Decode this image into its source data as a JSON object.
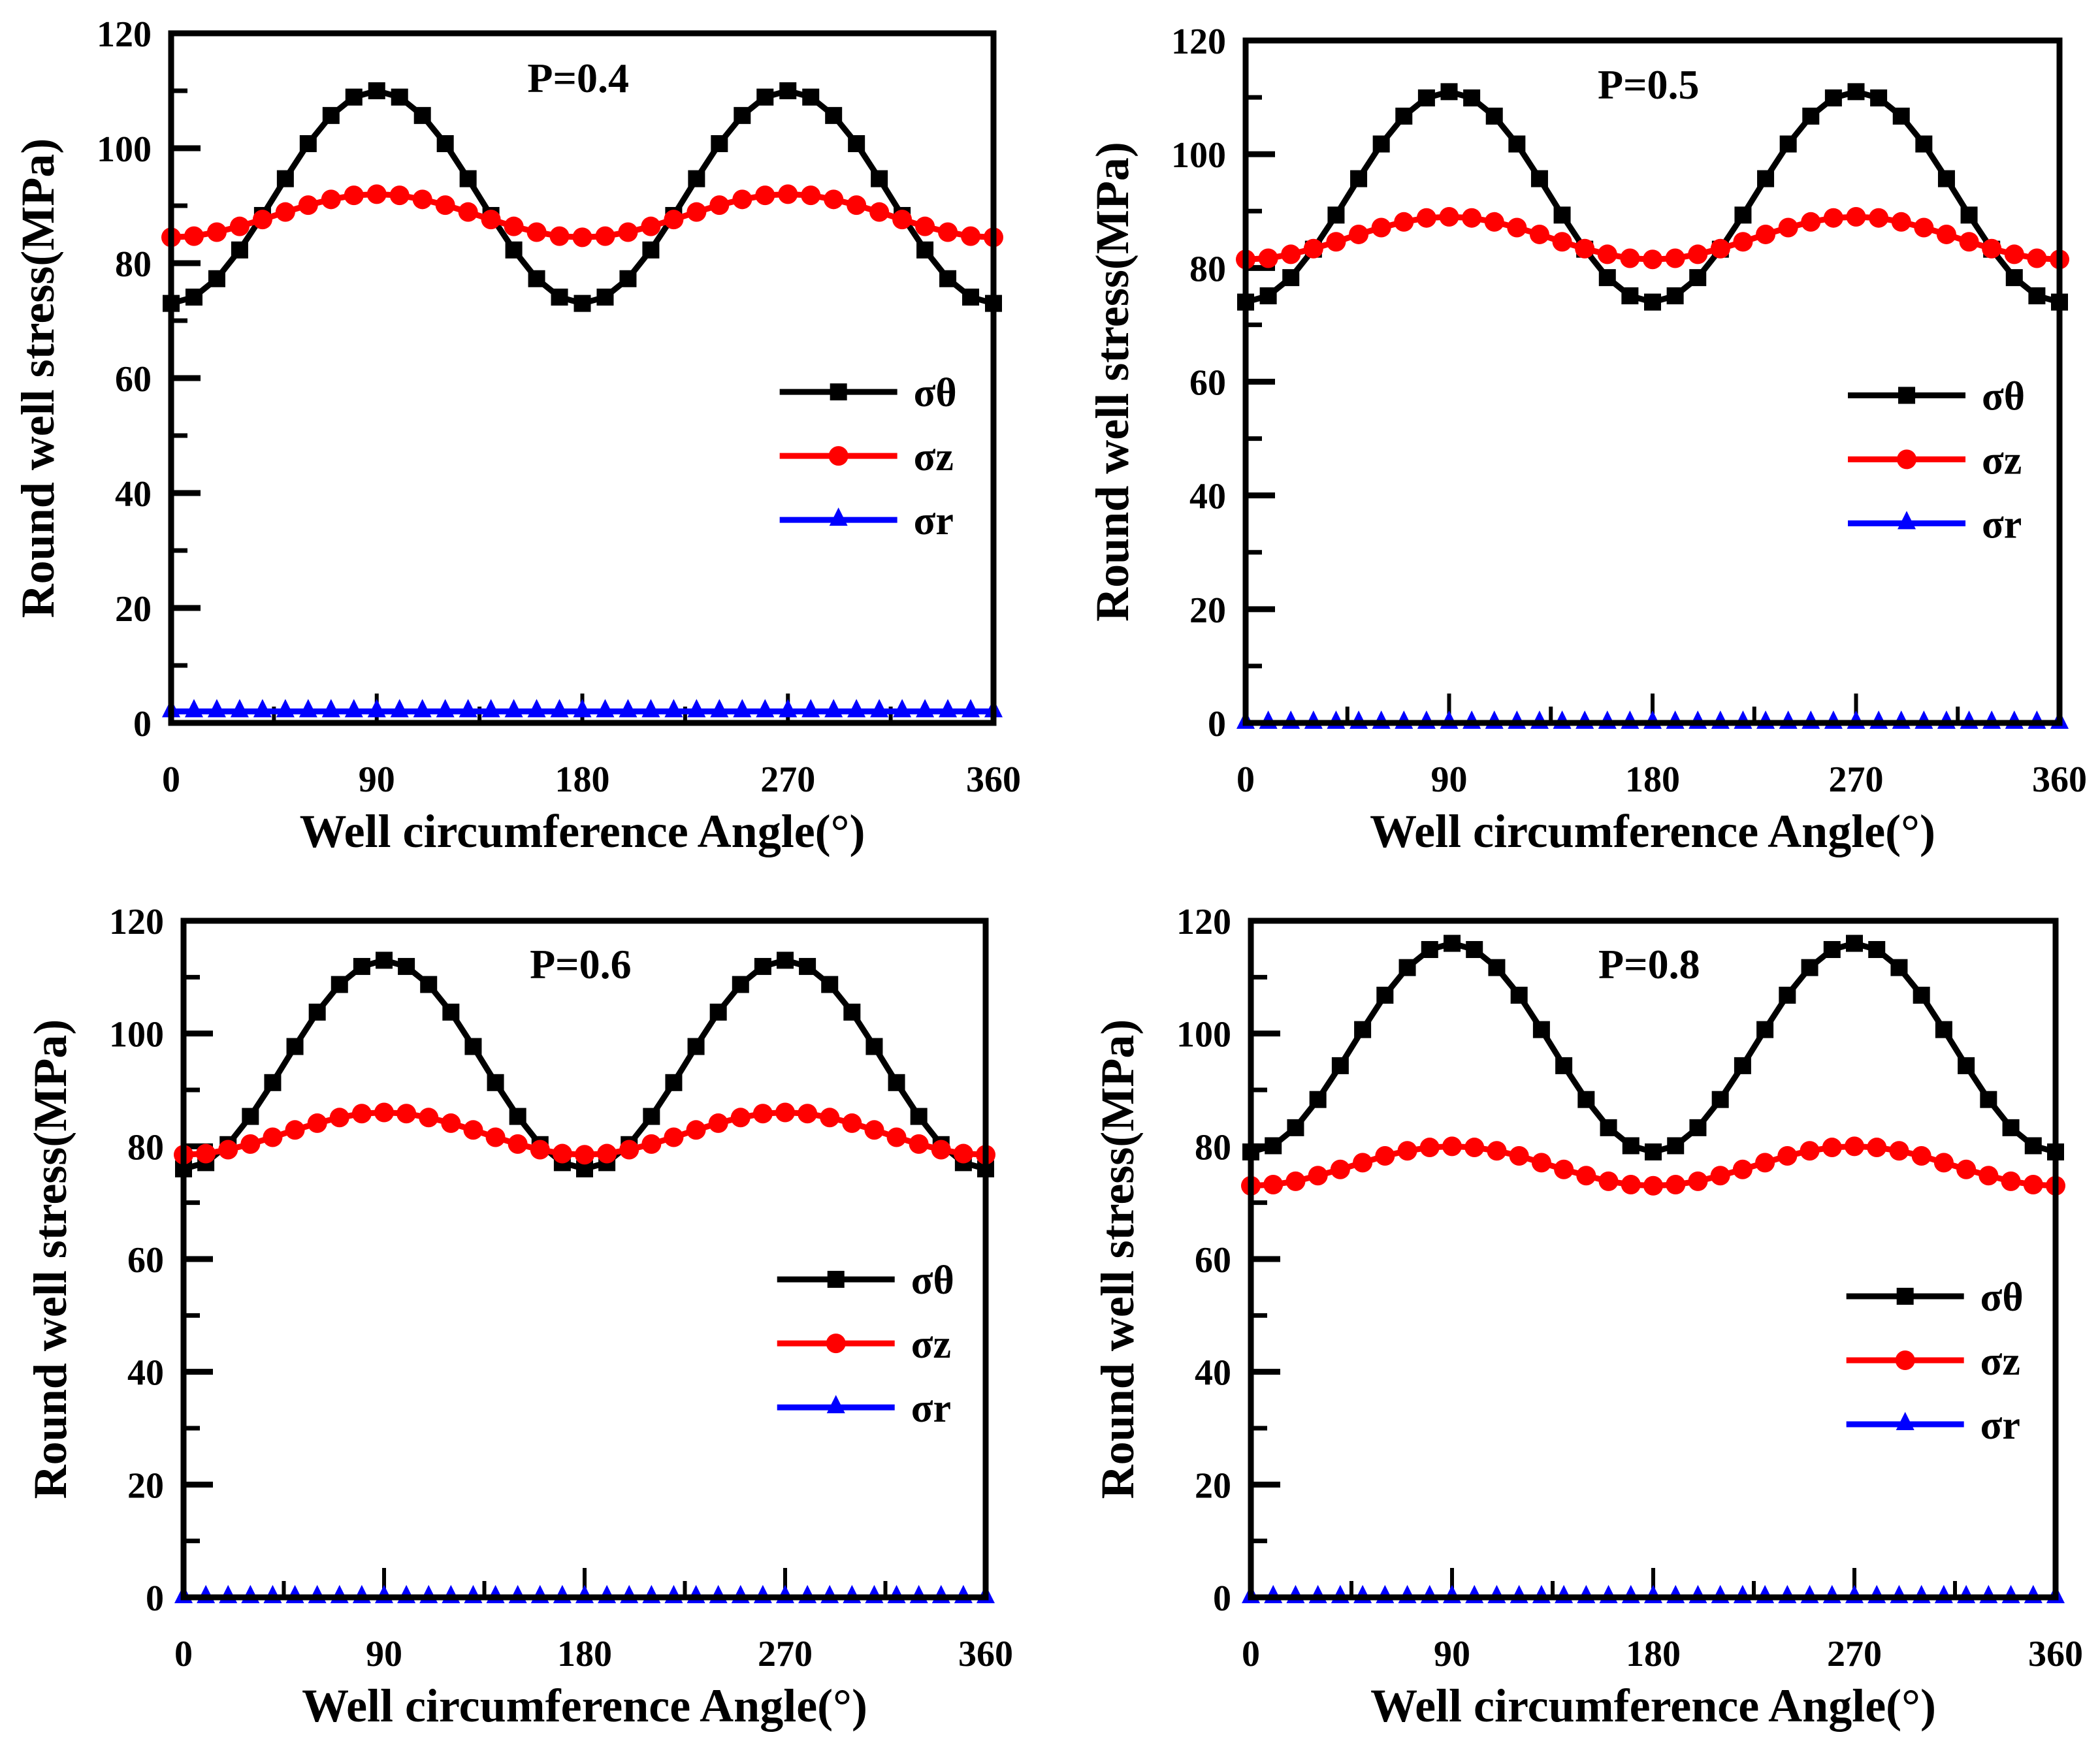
{
  "chart_data": [
    {
      "type": "line",
      "title": "P=0.4",
      "xlabel": "Well circumference Angle(°)",
      "ylabel": "Round well stress(MPa)",
      "xlim": [
        0,
        360
      ],
      "ylim": [
        0,
        120
      ],
      "xticks": [
        "0",
        "90",
        "180",
        "270",
        "360"
      ],
      "yticks": [
        "0",
        "20",
        "40",
        "60",
        "80",
        "100",
        "120"
      ],
      "grid": false,
      "legend": "center-right",
      "x": [
        0,
        10,
        20,
        30,
        40,
        50,
        60,
        70,
        80,
        90,
        100,
        110,
        120,
        130,
        140,
        150,
        160,
        170,
        180,
        190,
        200,
        210,
        220,
        230,
        240,
        250,
        260,
        270,
        280,
        290,
        300,
        310,
        320,
        330,
        340,
        350,
        360
      ],
      "series": [
        {
          "name": "σθ",
          "color": "#000000",
          "marker": "square",
          "values": [
            73,
            74.1,
            77.3,
            82.3,
            88.3,
            94.7,
            100.8,
            105.7,
            108.9,
            110,
            108.9,
            105.7,
            100.8,
            94.7,
            88.3,
            82.3,
            77.3,
            74.1,
            73,
            74.1,
            77.3,
            82.3,
            88.3,
            94.7,
            100.8,
            105.7,
            108.9,
            110,
            108.9,
            105.7,
            100.8,
            94.7,
            88.3,
            82.3,
            77.3,
            74.1,
            73
          ]
        },
        {
          "name": "σz",
          "color": "#ff0000",
          "marker": "circle",
          "values": [
            84.5,
            84.7,
            85.4,
            86.4,
            87.6,
            88.9,
            90.1,
            91.1,
            91.8,
            92,
            91.8,
            91.1,
            90.1,
            88.9,
            87.6,
            86.4,
            85.4,
            84.7,
            84.5,
            84.7,
            85.4,
            86.4,
            87.6,
            88.9,
            90.1,
            91.1,
            91.8,
            92,
            91.8,
            91.1,
            90.1,
            88.9,
            87.6,
            86.4,
            85.4,
            84.7,
            84.5
          ]
        },
        {
          "name": "σr",
          "color": "#0000ff",
          "marker": "triangle",
          "values": [
            2,
            2,
            2,
            2,
            2,
            2,
            2,
            2,
            2,
            2,
            2,
            2,
            2,
            2,
            2,
            2,
            2,
            2,
            2,
            2,
            2,
            2,
            2,
            2,
            2,
            2,
            2,
            2,
            2,
            2,
            2,
            2,
            2,
            2,
            2,
            2,
            2
          ]
        }
      ]
    },
    {
      "type": "line",
      "title": "P=0.5",
      "xlabel": "Well circumference Angle(°)",
      "ylabel": "Round well stress(MPa)",
      "xlim": [
        0,
        360
      ],
      "ylim": [
        0,
        120
      ],
      "xticks": [
        "0",
        "90",
        "180",
        "270",
        "360"
      ],
      "yticks": [
        "0",
        "20",
        "40",
        "60",
        "80",
        "100",
        "120"
      ],
      "grid": false,
      "legend": "center-right",
      "x": [
        0,
        10,
        20,
        30,
        40,
        50,
        60,
        70,
        80,
        90,
        100,
        110,
        120,
        130,
        140,
        150,
        160,
        170,
        180,
        190,
        200,
        210,
        220,
        230,
        240,
        250,
        260,
        270,
        280,
        290,
        300,
        310,
        320,
        330,
        340,
        350,
        360
      ],
      "series": [
        {
          "name": "σθ",
          "color": "#000000",
          "marker": "square",
          "values": [
            74,
            75.1,
            78.3,
            83.3,
            89.3,
            95.7,
            101.8,
            106.7,
            109.9,
            111,
            109.9,
            106.7,
            101.8,
            95.7,
            89.3,
            83.3,
            78.3,
            75.1,
            74,
            75.1,
            78.3,
            83.3,
            89.3,
            95.7,
            101.8,
            106.7,
            109.9,
            111,
            109.9,
            106.7,
            101.8,
            95.7,
            89.3,
            83.3,
            78.3,
            75.1,
            74
          ]
        },
        {
          "name": "σz",
          "color": "#ff0000",
          "marker": "circle",
          "values": [
            81.5,
            81.7,
            82.4,
            83.4,
            84.6,
            85.9,
            87.1,
            88.1,
            88.8,
            89,
            88.8,
            88.1,
            87.1,
            85.9,
            84.6,
            83.4,
            82.4,
            81.7,
            81.5,
            81.7,
            82.4,
            83.4,
            84.6,
            85.9,
            87.1,
            88.1,
            88.8,
            89,
            88.8,
            88.1,
            87.1,
            85.9,
            84.6,
            83.4,
            82.4,
            81.7,
            81.5
          ]
        },
        {
          "name": "σr",
          "color": "#0000ff",
          "marker": "triangle",
          "values": [
            0,
            0,
            0,
            0,
            0,
            0,
            0,
            0,
            0,
            0,
            0,
            0,
            0,
            0,
            0,
            0,
            0,
            0,
            0,
            0,
            0,
            0,
            0,
            0,
            0,
            0,
            0,
            0,
            0,
            0,
            0,
            0,
            0,
            0,
            0,
            0,
            0
          ]
        }
      ]
    },
    {
      "type": "line",
      "title": "P=0.6",
      "xlabel": "Well circumference Angle(°)",
      "ylabel": "Round well stress(MPa)",
      "xlim": [
        0,
        360
      ],
      "ylim": [
        0,
        120
      ],
      "xticks": [
        "0",
        "90",
        "180",
        "270",
        "360"
      ],
      "yticks": [
        "0",
        "20",
        "40",
        "60",
        "80",
        "100",
        "120"
      ],
      "grid": false,
      "legend": "center-right",
      "x": [
        0,
        10,
        20,
        30,
        40,
        50,
        60,
        70,
        80,
        90,
        100,
        110,
        120,
        130,
        140,
        150,
        160,
        170,
        180,
        190,
        200,
        210,
        220,
        230,
        240,
        250,
        260,
        270,
        280,
        290,
        300,
        310,
        320,
        330,
        340,
        350,
        360
      ],
      "series": [
        {
          "name": "σθ",
          "color": "#000000",
          "marker": "square",
          "values": [
            76,
            77.1,
            80.3,
            85.3,
            91.3,
            97.7,
            103.8,
            108.7,
            111.9,
            113,
            111.9,
            108.7,
            103.8,
            97.7,
            91.3,
            85.3,
            80.3,
            77.1,
            76,
            77.1,
            80.3,
            85.3,
            91.3,
            97.7,
            103.8,
            108.7,
            111.9,
            113,
            111.9,
            108.7,
            103.8,
            97.7,
            91.3,
            85.3,
            80.3,
            77.1,
            76
          ]
        },
        {
          "name": "σz",
          "color": "#ff0000",
          "marker": "circle",
          "values": [
            78.5,
            78.7,
            79.4,
            80.4,
            81.6,
            82.9,
            84.1,
            85.1,
            85.8,
            86,
            85.8,
            85.1,
            84.1,
            82.9,
            81.6,
            80.4,
            79.4,
            78.7,
            78.5,
            78.7,
            79.4,
            80.4,
            81.6,
            82.9,
            84.1,
            85.1,
            85.8,
            86,
            85.8,
            85.1,
            84.1,
            82.9,
            81.6,
            80.4,
            79.4,
            78.7,
            78.5
          ]
        },
        {
          "name": "σr",
          "color": "#0000ff",
          "marker": "triangle",
          "values": [
            0,
            0,
            0,
            0,
            0,
            0,
            0,
            0,
            0,
            0,
            0,
            0,
            0,
            0,
            0,
            0,
            0,
            0,
            0,
            0,
            0,
            0,
            0,
            0,
            0,
            0,
            0,
            0,
            0,
            0,
            0,
            0,
            0,
            0,
            0,
            0,
            0
          ]
        }
      ]
    },
    {
      "type": "line",
      "title": "P=0.8",
      "xlabel": "Well circumference Angle(°)",
      "ylabel": "Round well stress(MPa)",
      "xlim": [
        0,
        360
      ],
      "ylim": [
        0,
        120
      ],
      "xticks": [
        "0",
        "90",
        "180",
        "270",
        "360"
      ],
      "yticks": [
        "0",
        "20",
        "40",
        "60",
        "80",
        "100",
        "120"
      ],
      "grid": false,
      "legend": "center-right",
      "x": [
        0,
        10,
        20,
        30,
        40,
        50,
        60,
        70,
        80,
        90,
        100,
        110,
        120,
        130,
        140,
        150,
        160,
        170,
        180,
        190,
        200,
        210,
        220,
        230,
        240,
        250,
        260,
        270,
        280,
        290,
        300,
        310,
        320,
        330,
        340,
        350,
        360
      ],
      "series": [
        {
          "name": "σθ",
          "color": "#000000",
          "marker": "square",
          "values": [
            79,
            80.1,
            83.3,
            88.3,
            94.3,
            100.7,
            106.8,
            111.7,
            114.9,
            116,
            114.9,
            111.7,
            106.8,
            100.7,
            94.3,
            88.3,
            83.3,
            80.1,
            79,
            80.1,
            83.3,
            88.3,
            94.3,
            100.7,
            106.8,
            111.7,
            114.9,
            116,
            114.9,
            111.7,
            106.8,
            100.7,
            94.3,
            88.3,
            83.3,
            80.1,
            79
          ]
        },
        {
          "name": "σz",
          "color": "#ff0000",
          "marker": "circle",
          "values": [
            73,
            73.2,
            73.8,
            74.8,
            75.9,
            77.1,
            78.3,
            79.2,
            79.8,
            80,
            79.8,
            79.2,
            78.3,
            77.1,
            75.9,
            74.8,
            73.8,
            73.2,
            73,
            73.2,
            73.8,
            74.8,
            75.9,
            77.1,
            78.3,
            79.2,
            79.8,
            80,
            79.8,
            79.2,
            78.3,
            77.1,
            75.9,
            74.8,
            73.8,
            73.2,
            73
          ]
        },
        {
          "name": "σr",
          "color": "#0000ff",
          "marker": "triangle",
          "values": [
            0,
            0,
            0,
            0,
            0,
            0,
            0,
            0,
            0,
            0,
            0,
            0,
            0,
            0,
            0,
            0,
            0,
            0,
            0,
            0,
            0,
            0,
            0,
            0,
            0,
            0,
            0,
            0,
            0,
            0,
            0,
            0,
            0,
            0,
            0,
            0,
            0
          ]
        }
      ]
    }
  ]
}
